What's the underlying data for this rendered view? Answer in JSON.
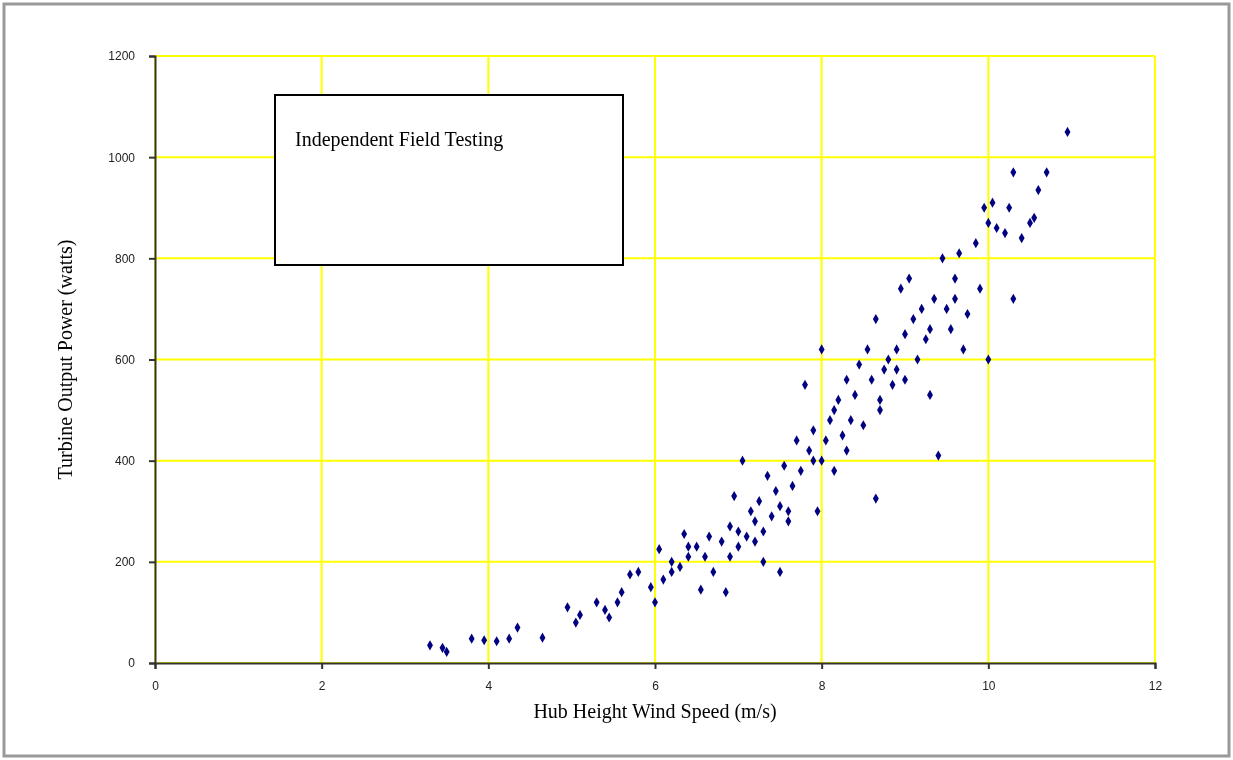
{
  "chart_data": {
    "type": "scatter",
    "xlabel": "Hub Height Wind Speed (m/s)",
    "ylabel": "Turbine Output Power (watts)",
    "annotations": [
      "Independent Field Testing"
    ],
    "xlim": [
      0,
      12
    ],
    "xticks": [
      0,
      2,
      4,
      6,
      8,
      10,
      12
    ],
    "ylim": [
      0,
      1200
    ],
    "yticks": [
      0,
      200,
      400,
      600,
      800,
      1000,
      1200
    ],
    "grid": true,
    "marker": "diamond",
    "series": [
      {
        "color": "#000080",
        "x": [
          3.3,
          3.45,
          3.5,
          3.8,
          3.95,
          4.1,
          4.25,
          4.35,
          4.65,
          4.95,
          5.05,
          5.1,
          5.3,
          5.4,
          5.45,
          5.55,
          5.6,
          5.7,
          5.8,
          5.95,
          6.0,
          6.05,
          6.1,
          6.2,
          6.3,
          6.35,
          6.4,
          6.5,
          6.55,
          6.6,
          6.65,
          6.7,
          6.8,
          6.85,
          6.9,
          6.95,
          7.0,
          7.05,
          7.1,
          7.15,
          7.2,
          7.25,
          7.3,
          7.35,
          7.4,
          7.45,
          7.5,
          7.5,
          7.55,
          7.6,
          7.65,
          7.7,
          7.75,
          7.8,
          7.85,
          7.9,
          7.95,
          8.0,
          8.0,
          8.05,
          8.1,
          8.15,
          8.2,
          8.25,
          8.3,
          8.35,
          8.4,
          8.45,
          8.5,
          8.55,
          8.6,
          8.65,
          8.65,
          8.7,
          8.75,
          8.8,
          8.85,
          8.9,
          8.95,
          9.0,
          9.05,
          9.1,
          9.15,
          9.2,
          9.25,
          9.3,
          9.35,
          9.4,
          9.45,
          9.5,
          9.55,
          9.6,
          9.65,
          9.7,
          9.75,
          9.85,
          9.9,
          9.95,
          10.0,
          10.0,
          10.05,
          10.1,
          10.2,
          10.25,
          10.3,
          10.3,
          10.4,
          10.5,
          10.55,
          10.6,
          10.7,
          10.95,
          7.0,
          7.3,
          7.6,
          7.9,
          8.3,
          8.7,
          9.0,
          8.9,
          7.2,
          6.9,
          6.2,
          6.4,
          8.15,
          9.3,
          9.6
        ],
        "values": [
          35,
          30,
          22,
          48,
          45,
          43,
          48,
          70,
          50,
          110,
          80,
          95,
          120,
          105,
          90,
          120,
          140,
          175,
          180,
          150,
          120,
          225,
          165,
          200,
          190,
          255,
          210,
          230,
          145,
          210,
          250,
          180,
          240,
          140,
          270,
          330,
          260,
          400,
          250,
          300,
          280,
          320,
          200,
          370,
          290,
          340,
          180,
          310,
          390,
          300,
          350,
          440,
          380,
          550,
          420,
          460,
          300,
          620,
          400,
          440,
          480,
          380,
          520,
          450,
          560,
          480,
          530,
          590,
          470,
          620,
          560,
          680,
          325,
          520,
          580,
          600,
          550,
          580,
          740,
          650,
          760,
          680,
          600,
          700,
          640,
          530,
          720,
          410,
          800,
          700,
          660,
          760,
          810,
          620,
          690,
          830,
          740,
          900,
          600,
          870,
          910,
          860,
          850,
          900,
          720,
          970,
          840,
          870,
          880,
          935,
          970,
          1050,
          230,
          260,
          280,
          400,
          420,
          500,
          560,
          620,
          240,
          210,
          180,
          230,
          500,
          660,
          720
        ]
      }
    ]
  }
}
